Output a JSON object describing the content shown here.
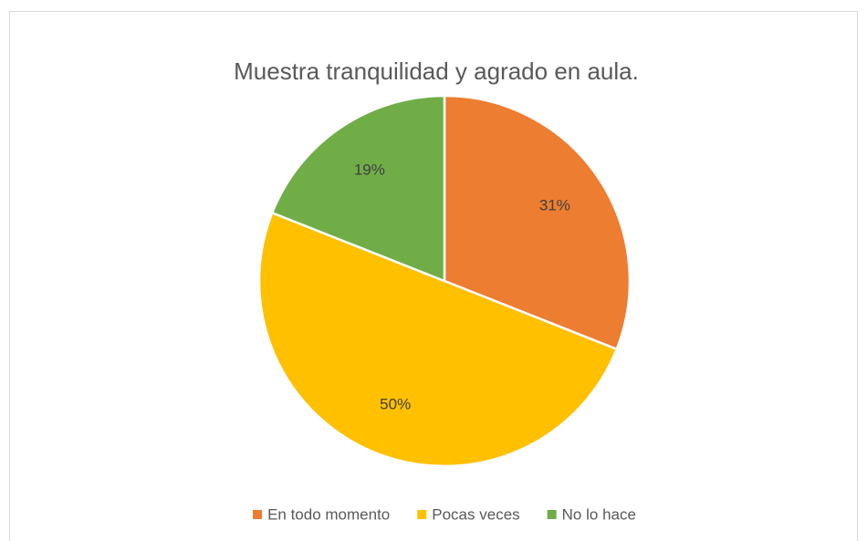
{
  "chart_data": {
    "type": "pie",
    "title": "Muestra tranquilidad y agrado en aula.",
    "categories": [
      "En todo momento",
      "Pocas veces",
      "No lo hace"
    ],
    "values": [
      31,
      50,
      19
    ],
    "value_labels": [
      "31%",
      "50%",
      "19%"
    ],
    "colors": [
      "#ED7D31",
      "#FFC000",
      "#70AD47"
    ],
    "legend": "bottom"
  }
}
